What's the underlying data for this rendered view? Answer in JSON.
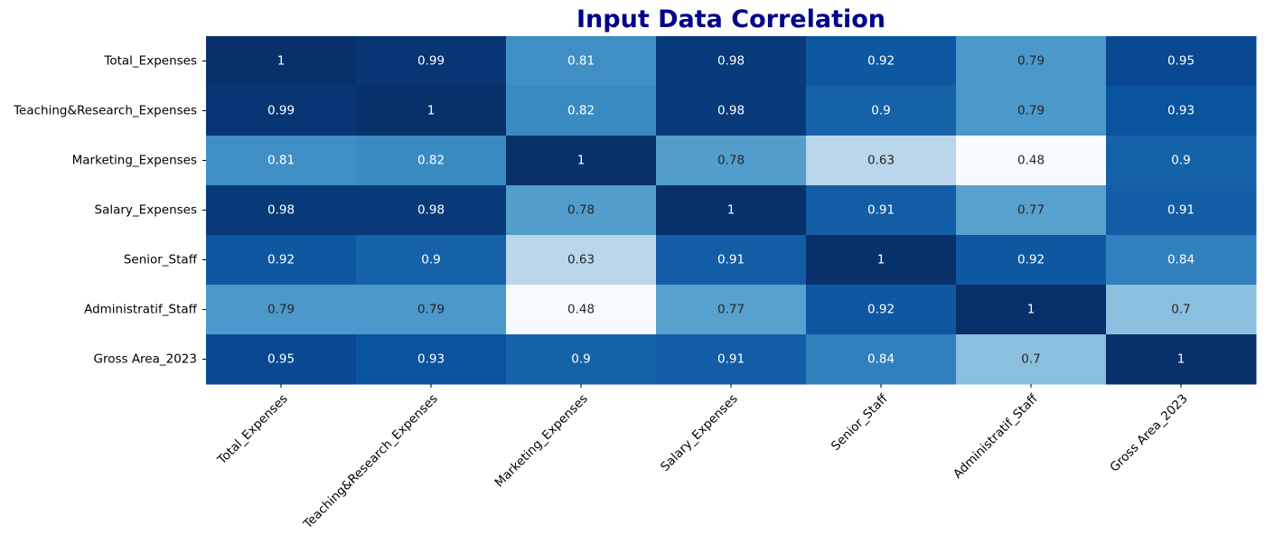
{
  "chart_data": {
    "type": "heatmap",
    "title": "Input Data Correlation",
    "title_color": "#00008b",
    "colormap": "Blues",
    "colorbar": false,
    "row_labels": [
      "Total_Expenses",
      "Teaching&Research_Expenses",
      "Marketing_Expenses",
      "Salary_Expenses",
      "Senior_Staff",
      "Administratif_Staff",
      "Gross Area_2023"
    ],
    "col_labels": [
      "Total_Expenses",
      "Teaching&Research_Expenses",
      "Marketing_Expenses",
      "Salary_Expenses",
      "Senior_Staff",
      "Administratif_Staff",
      "Gross Area_2023"
    ],
    "x_tick_rotation": 45,
    "values": [
      [
        1,
        0.99,
        0.81,
        0.98,
        0.92,
        0.79,
        0.95
      ],
      [
        0.99,
        1,
        0.82,
        0.98,
        0.9,
        0.79,
        0.93
      ],
      [
        0.81,
        0.82,
        1,
        0.78,
        0.63,
        0.48,
        0.9
      ],
      [
        0.98,
        0.98,
        0.78,
        1,
        0.91,
        0.77,
        0.91
      ],
      [
        0.92,
        0.9,
        0.63,
        0.91,
        1,
        0.92,
        0.84
      ],
      [
        0.79,
        0.79,
        0.48,
        0.77,
        0.92,
        1,
        0.7
      ],
      [
        0.95,
        0.93,
        0.9,
        0.91,
        0.84,
        0.7,
        1
      ]
    ],
    "value_labels": [
      [
        "1",
        "0.99",
        "0.81",
        "0.98",
        "0.92",
        "0.79",
        "0.95"
      ],
      [
        "0.99",
        "1",
        "0.82",
        "0.98",
        "0.9",
        "0.79",
        "0.93"
      ],
      [
        "0.81",
        "0.82",
        "1",
        "0.78",
        "0.63",
        "0.48",
        "0.9"
      ],
      [
        "0.98",
        "0.98",
        "0.78",
        "1",
        "0.91",
        "0.77",
        "0.91"
      ],
      [
        "0.92",
        "0.9",
        "0.63",
        "0.91",
        "1",
        "0.92",
        "0.84"
      ],
      [
        "0.79",
        "0.79",
        "0.48",
        "0.77",
        "0.92",
        "1",
        "0.7"
      ],
      [
        "0.95",
        "0.93",
        "0.9",
        "0.91",
        "0.84",
        "0.7",
        "1"
      ]
    ],
    "vmin": 0.48,
    "vmax": 1
  }
}
